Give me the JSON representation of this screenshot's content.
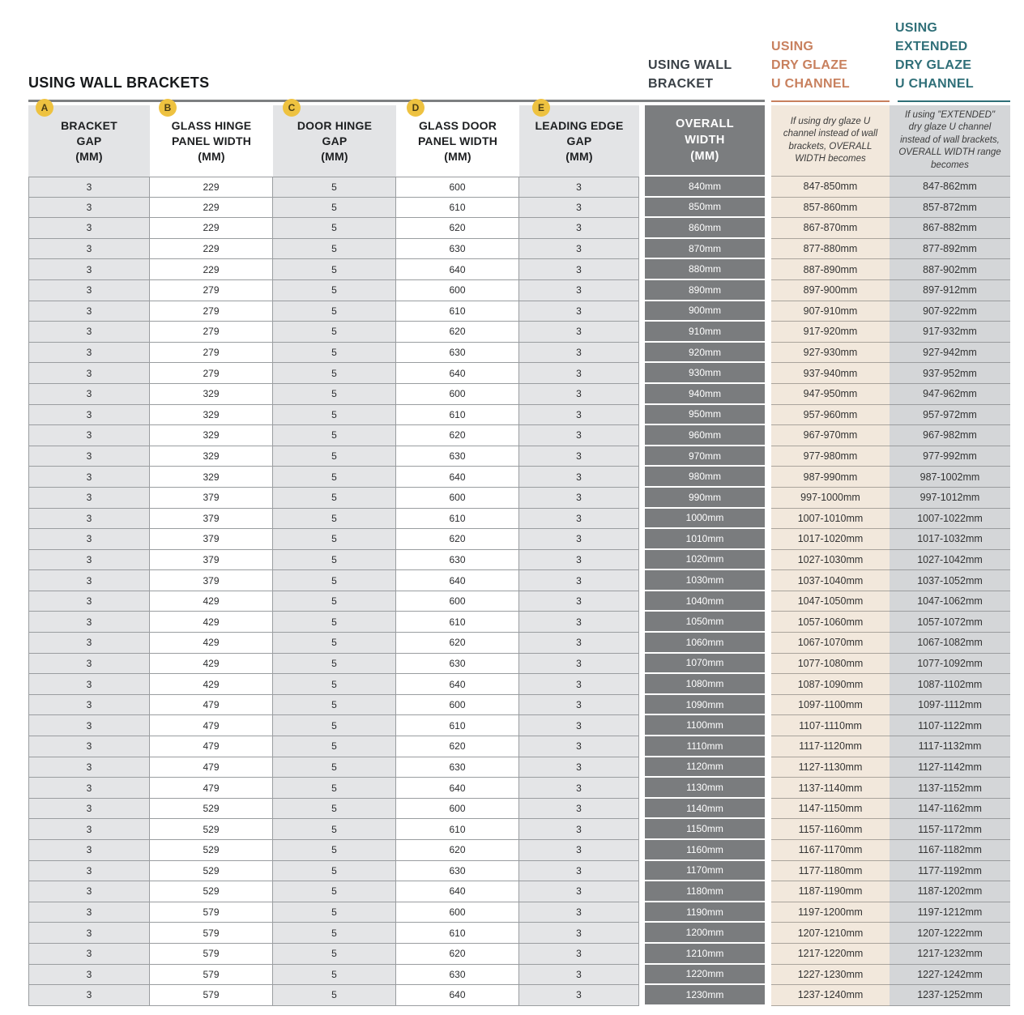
{
  "title": "USING WALL BRACKETS",
  "group_headers": [
    {
      "id": "wall-bracket",
      "label": "USING WALL\nBRACKET",
      "color": "#3a4147"
    },
    {
      "id": "dry-glaze",
      "label": "USING\nDRY GLAZE\nU CHANNEL",
      "color": "#c8805e"
    },
    {
      "id": "extended-dry-glaze",
      "label": "USING\nEXTENDED\nDRY GLAZE\nU CHANNEL",
      "color": "#2f6f78"
    }
  ],
  "columns": [
    {
      "badge": "A",
      "header": "BRACKET\nGAP\n(MM)"
    },
    {
      "badge": "B",
      "header": "GLASS HINGE\nPANEL WIDTH\n(MM)"
    },
    {
      "badge": "C",
      "header": "DOOR HINGE\nGAP\n(MM)"
    },
    {
      "badge": "D",
      "header": "GLASS DOOR\nPANEL WIDTH\n(MM)"
    },
    {
      "badge": "E",
      "header": "LEADING EDGE\nGAP\n(MM)"
    },
    {
      "badge": "",
      "header": "OVERALL\nWIDTH\n(MM)"
    },
    {
      "badge": "",
      "header": "If using dry glaze U channel instead of wall brackets, OVERALL WIDTH becomes"
    },
    {
      "badge": "",
      "header": "If using \"EXTENDED\" dry glaze U channel instead of wall brackets, OVERALL WIDTH range becomes"
    }
  ],
  "rows": [
    [
      "3",
      "229",
      "5",
      "600",
      "3",
      "840mm",
      "847-850mm",
      "847-862mm"
    ],
    [
      "3",
      "229",
      "5",
      "610",
      "3",
      "850mm",
      "857-860mm",
      "857-872mm"
    ],
    [
      "3",
      "229",
      "5",
      "620",
      "3",
      "860mm",
      "867-870mm",
      "867-882mm"
    ],
    [
      "3",
      "229",
      "5",
      "630",
      "3",
      "870mm",
      "877-880mm",
      "877-892mm"
    ],
    [
      "3",
      "229",
      "5",
      "640",
      "3",
      "880mm",
      "887-890mm",
      "887-902mm"
    ],
    [
      "3",
      "279",
      "5",
      "600",
      "3",
      "890mm",
      "897-900mm",
      "897-912mm"
    ],
    [
      "3",
      "279",
      "5",
      "610",
      "3",
      "900mm",
      "907-910mm",
      "907-922mm"
    ],
    [
      "3",
      "279",
      "5",
      "620",
      "3",
      "910mm",
      "917-920mm",
      "917-932mm"
    ],
    [
      "3",
      "279",
      "5",
      "630",
      "3",
      "920mm",
      "927-930mm",
      "927-942mm"
    ],
    [
      "3",
      "279",
      "5",
      "640",
      "3",
      "930mm",
      "937-940mm",
      "937-952mm"
    ],
    [
      "3",
      "329",
      "5",
      "600",
      "3",
      "940mm",
      "947-950mm",
      "947-962mm"
    ],
    [
      "3",
      "329",
      "5",
      "610",
      "3",
      "950mm",
      "957-960mm",
      "957-972mm"
    ],
    [
      "3",
      "329",
      "5",
      "620",
      "3",
      "960mm",
      "967-970mm",
      "967-982mm"
    ],
    [
      "3",
      "329",
      "5",
      "630",
      "3",
      "970mm",
      "977-980mm",
      "977-992mm"
    ],
    [
      "3",
      "329",
      "5",
      "640",
      "3",
      "980mm",
      "987-990mm",
      "987-1002mm"
    ],
    [
      "3",
      "379",
      "5",
      "600",
      "3",
      "990mm",
      "997-1000mm",
      "997-1012mm"
    ],
    [
      "3",
      "379",
      "5",
      "610",
      "3",
      "1000mm",
      "1007-1010mm",
      "1007-1022mm"
    ],
    [
      "3",
      "379",
      "5",
      "620",
      "3",
      "1010mm",
      "1017-1020mm",
      "1017-1032mm"
    ],
    [
      "3",
      "379",
      "5",
      "630",
      "3",
      "1020mm",
      "1027-1030mm",
      "1027-1042mm"
    ],
    [
      "3",
      "379",
      "5",
      "640",
      "3",
      "1030mm",
      "1037-1040mm",
      "1037-1052mm"
    ],
    [
      "3",
      "429",
      "5",
      "600",
      "3",
      "1040mm",
      "1047-1050mm",
      "1047-1062mm"
    ],
    [
      "3",
      "429",
      "5",
      "610",
      "3",
      "1050mm",
      "1057-1060mm",
      "1057-1072mm"
    ],
    [
      "3",
      "429",
      "5",
      "620",
      "3",
      "1060mm",
      "1067-1070mm",
      "1067-1082mm"
    ],
    [
      "3",
      "429",
      "5",
      "630",
      "3",
      "1070mm",
      "1077-1080mm",
      "1077-1092mm"
    ],
    [
      "3",
      "429",
      "5",
      "640",
      "3",
      "1080mm",
      "1087-1090mm",
      "1087-1102mm"
    ],
    [
      "3",
      "479",
      "5",
      "600",
      "3",
      "1090mm",
      "1097-1100mm",
      "1097-1112mm"
    ],
    [
      "3",
      "479",
      "5",
      "610",
      "3",
      "1100mm",
      "1107-1110mm",
      "1107-1122mm"
    ],
    [
      "3",
      "479",
      "5",
      "620",
      "3",
      "1110mm",
      "1117-1120mm",
      "1117-1132mm"
    ],
    [
      "3",
      "479",
      "5",
      "630",
      "3",
      "1120mm",
      "1127-1130mm",
      "1127-1142mm"
    ],
    [
      "3",
      "479",
      "5",
      "640",
      "3",
      "1130mm",
      "1137-1140mm",
      "1137-1152mm"
    ],
    [
      "3",
      "529",
      "5",
      "600",
      "3",
      "1140mm",
      "1147-1150mm",
      "1147-1162mm"
    ],
    [
      "3",
      "529",
      "5",
      "610",
      "3",
      "1150mm",
      "1157-1160mm",
      "1157-1172mm"
    ],
    [
      "3",
      "529",
      "5",
      "620",
      "3",
      "1160mm",
      "1167-1170mm",
      "1167-1182mm"
    ],
    [
      "3",
      "529",
      "5",
      "630",
      "3",
      "1170mm",
      "1177-1180mm",
      "1177-1192mm"
    ],
    [
      "3",
      "529",
      "5",
      "640",
      "3",
      "1180mm",
      "1187-1190mm",
      "1187-1202mm"
    ],
    [
      "3",
      "579",
      "5",
      "600",
      "3",
      "1190mm",
      "1197-1200mm",
      "1197-1212mm"
    ],
    [
      "3",
      "579",
      "5",
      "610",
      "3",
      "1200mm",
      "1207-1210mm",
      "1207-1222mm"
    ],
    [
      "3",
      "579",
      "5",
      "620",
      "3",
      "1210mm",
      "1217-1220mm",
      "1217-1232mm"
    ],
    [
      "3",
      "579",
      "5",
      "630",
      "3",
      "1220mm",
      "1227-1230mm",
      "1227-1242mm"
    ],
    [
      "3",
      "579",
      "5",
      "640",
      "3",
      "1230mm",
      "1237-1240mm",
      "1237-1252mm"
    ]
  ],
  "colors": {
    "accent_orange": "#c8805e",
    "accent_teal": "#2f6f78",
    "badge_yellow": "#eec240",
    "dark_column": "#7a7c7e",
    "cream_column": "#f2e8dc",
    "extended_column": "#d4d6d8",
    "light_cell": "#e4e5e7",
    "grid_line": "#9a9da0"
  }
}
